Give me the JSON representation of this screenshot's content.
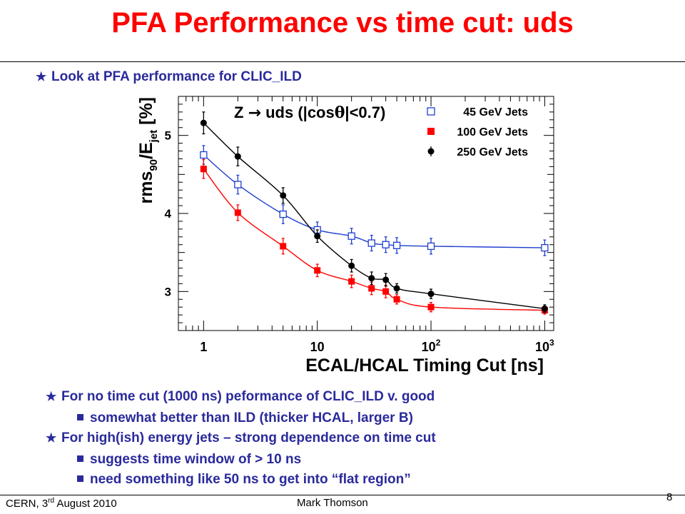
{
  "slide": {
    "title": "PFA Performance vs time cut: uds",
    "intro_bullet": "Look at PFA performance for CLIC_ILD",
    "bullets": [
      {
        "text": "For no time cut (1000 ns) peformance of CLIC_ILD v. good",
        "sub": [
          "somewhat better than ILD (thicker HCAL, larger B)"
        ]
      },
      {
        "text": "For high(ish) energy jets – strong dependence on time cut",
        "sub": [
          "suggests time window of > 10 ns",
          "need something like 50 ns to get into “flat region”"
        ]
      }
    ],
    "footer": {
      "left_prefix": "CERN, 3",
      "left_sup": "rd",
      "left_suffix": " August 2010",
      "author": "Mark Thomson",
      "page": "8"
    }
  },
  "chart_data": {
    "type": "scatter",
    "title": "Z → uds (|cosθ|<0.7)",
    "title_parts": {
      "main": "Z ",
      "arrow": "→",
      "rest": " uds (|cos",
      "theta": "θ",
      "end": "|<0.7)"
    },
    "xlabel": "ECAL/HCAL Timing Cut [ns]",
    "ylabel": "rms90/Ejet [%]",
    "ylabel_parts": {
      "a": "rms",
      "sub1": "90",
      "b": "/E",
      "sub2": "jet",
      "c": " [%]"
    },
    "x_scale": "log",
    "xlim": [
      0.6,
      1200
    ],
    "ylim": [
      2.5,
      5.5
    ],
    "x_ticks": [
      {
        "v": 1,
        "label": "1"
      },
      {
        "v": 10,
        "label": "10"
      },
      {
        "v": 100,
        "label": "10",
        "sup": "2"
      },
      {
        "v": 1000,
        "label": "10",
        "sup": "3"
      }
    ],
    "y_ticks": [
      {
        "v": 3,
        "label": "3"
      },
      {
        "v": 4,
        "label": "4"
      },
      {
        "v": 5,
        "label": "5"
      }
    ],
    "legend_position": "top-right",
    "series": [
      {
        "name": "45 GeV Jets",
        "marker": "open-square",
        "color": "#1f3fcf",
        "x": [
          1,
          2,
          5,
          10,
          20,
          30,
          40,
          50,
          100,
          1000
        ],
        "y": [
          4.75,
          4.37,
          3.99,
          3.79,
          3.71,
          3.62,
          3.6,
          3.59,
          3.58,
          3.56
        ],
        "err": [
          0.12,
          0.12,
          0.12,
          0.1,
          0.1,
          0.1,
          0.1,
          0.1,
          0.1,
          0.1
        ]
      },
      {
        "name": "100 GeV Jets",
        "marker": "filled-square",
        "color": "#ff0000",
        "x": [
          1,
          2,
          5,
          10,
          20,
          30,
          40,
          50,
          100,
          1000
        ],
        "y": [
          4.57,
          4.01,
          3.58,
          3.27,
          3.13,
          3.04,
          3.0,
          2.9,
          2.8,
          2.76
        ],
        "err": [
          0.12,
          0.1,
          0.1,
          0.08,
          0.08,
          0.08,
          0.08,
          0.06,
          0.06,
          0.05
        ]
      },
      {
        "name": "250 GeV Jets",
        "marker": "filled-circle",
        "color": "#000000",
        "x": [
          1,
          2,
          5,
          10,
          20,
          30,
          40,
          50,
          100,
          1000
        ],
        "y": [
          5.16,
          4.73,
          4.23,
          3.71,
          3.33,
          3.17,
          3.15,
          3.04,
          2.97,
          2.78
        ],
        "err": [
          0.14,
          0.12,
          0.1,
          0.08,
          0.08,
          0.08,
          0.08,
          0.06,
          0.06,
          0.05
        ]
      }
    ]
  }
}
